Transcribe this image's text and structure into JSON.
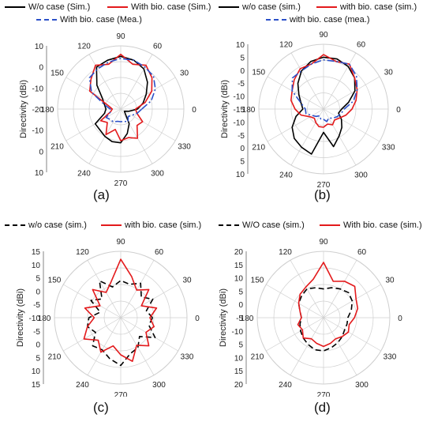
{
  "panels": [
    {
      "id": "a",
      "label": "(a)",
      "ylabel": "Directivity (dBi)",
      "legend": [
        "W/o case (Sim.)",
        "With bio. case (Sim.)",
        "With bio. case (Mea.)"
      ],
      "radial_ticks": [
        "10",
        "0",
        "-10",
        "-20",
        "-10",
        "0",
        "10"
      ],
      "angle_labels": [
        "0",
        "30",
        "60",
        "90",
        "120",
        "150",
        "180",
        "210",
        "240",
        "270",
        "300",
        "330"
      ]
    },
    {
      "id": "b",
      "label": "(b)",
      "ylabel": "Directivity (dBi)",
      "legend": [
        "w/o case (sim.)",
        "with bio. case (sim.)",
        "with bio. case (mea.)"
      ],
      "radial_ticks": [
        "10",
        "5",
        "0",
        "-5",
        "-10",
        "-15",
        "-10",
        "-5",
        "0",
        "5",
        "10"
      ],
      "angle_labels": [
        "0",
        "30",
        "60",
        "90",
        "120",
        "150",
        "180",
        "210",
        "240",
        "270",
        "300",
        "330"
      ]
    },
    {
      "id": "c",
      "label": "(c)",
      "ylabel": "Directivity (dBi)",
      "legend": [
        "w/o case (sim.)",
        "with bio. case (sim.)"
      ],
      "radial_ticks": [
        "15",
        "10",
        "5",
        "0",
        "-5",
        "-10",
        "-5",
        "0",
        "5",
        "10",
        "15"
      ],
      "angle_labels": [
        "0",
        "30",
        "60",
        "90",
        "120",
        "150",
        "180",
        "210",
        "240",
        "270",
        "300",
        "330"
      ]
    },
    {
      "id": "d",
      "label": "(d)",
      "ylabel": "Directivity (dBi)",
      "legend": [
        "W/O case (sim.)",
        "With bio. case (sim.)"
      ],
      "radial_ticks": [
        "20",
        "15",
        "10",
        "5",
        "0",
        "-5",
        "-10",
        "5",
        "10",
        "15",
        "20"
      ],
      "angle_labels": [
        "0",
        "30",
        "60",
        "90",
        "120",
        "150",
        "180",
        "210",
        "240",
        "270",
        "300",
        "330"
      ]
    }
  ],
  "colors": {
    "sim_wo": "#000000",
    "sim_bio": "#e31a1c",
    "mea_bio": "#2b50c8",
    "grid": "#cfcfcf"
  },
  "chart_data": [
    {
      "type": "polar",
      "title": "",
      "ylabel": "Directivity (dBi)",
      "r_range": [
        -20,
        10
      ],
      "theta_unit": "deg",
      "series": [
        {
          "name": "W/o case (Sim.)",
          "style": "solid",
          "color": "#000000",
          "theta": [
            0,
            15,
            30,
            45,
            60,
            75,
            90,
            105,
            120,
            135,
            150,
            165,
            180,
            195,
            210,
            225,
            240,
            255,
            270,
            285,
            300,
            315,
            330,
            345
          ],
          "r": [
            -12,
            -9,
            -6,
            -2,
            2,
            4,
            5,
            4,
            3,
            -4,
            -10,
            -12,
            -13,
            -12,
            -6,
            -6,
            -5,
            -4,
            -4,
            -8,
            -12,
            -17,
            -18,
            -16
          ]
        },
        {
          "name": "With bio. case (Sim.)",
          "style": "solid",
          "color": "#e31a1c",
          "theta": [
            0,
            15,
            30,
            45,
            60,
            75,
            90,
            105,
            120,
            135,
            150,
            165,
            180,
            195,
            210,
            225,
            240,
            255,
            270,
            285,
            300,
            315,
            330,
            345
          ],
          "r": [
            -13,
            -8,
            -3,
            1,
            4,
            2,
            6,
            2,
            4,
            0,
            -3,
            -14,
            -16,
            -15,
            -9,
            -11,
            -6,
            -10,
            -5,
            -6,
            -4,
            -9,
            -8,
            -12
          ]
        },
        {
          "name": "With bio. case (Mea.)",
          "style": "dashdot",
          "color": "#2b50c8",
          "theta": [
            0,
            15,
            30,
            45,
            60,
            75,
            90,
            105,
            120,
            135,
            150,
            165,
            180,
            195,
            210,
            225,
            240,
            255,
            270,
            285,
            300,
            315,
            330,
            345
          ],
          "r": [
            -10,
            -5,
            -1,
            2,
            3,
            4,
            4,
            3,
            2,
            1,
            -4,
            -12,
            -15,
            -15,
            -12,
            -13,
            -13,
            -14,
            -14,
            -14,
            -13,
            -15,
            -14,
            -12
          ]
        }
      ]
    },
    {
      "type": "polar",
      "title": "",
      "ylabel": "Directivity (dBi)",
      "r_range": [
        -15,
        10
      ],
      "theta_unit": "deg",
      "series": [
        {
          "name": "w/o case (sim.)",
          "style": "solid",
          "color": "#000000",
          "theta": [
            0,
            15,
            30,
            45,
            60,
            75,
            90,
            105,
            120,
            135,
            150,
            165,
            180,
            195,
            210,
            225,
            240,
            255,
            270,
            285,
            300,
            315,
            330,
            345
          ],
          "r": [
            -8,
            -5,
            -1,
            2,
            4,
            5,
            5,
            4,
            2,
            -1,
            -4,
            -6,
            -7,
            -4,
            -1,
            1,
            2,
            3,
            -6,
            0,
            -3,
            -5,
            -7,
            -9
          ]
        },
        {
          "name": "with bio. case (sim.)",
          "style": "solid",
          "color": "#e31a1c",
          "theta": [
            0,
            15,
            30,
            45,
            60,
            75,
            90,
            105,
            120,
            135,
            150,
            165,
            180,
            195,
            210,
            225,
            240,
            255,
            270,
            285,
            300,
            315,
            330,
            345
          ],
          "r": [
            -4,
            -2,
            0,
            2,
            5,
            4,
            6,
            3,
            3,
            1,
            -1,
            -2,
            -4,
            -6,
            -9,
            -10,
            -9,
            -8,
            -8,
            -9,
            -8,
            -9,
            -8,
            -6
          ]
        },
        {
          "name": "with bio. case (mea.)",
          "style": "dashdot",
          "color": "#2b50c8",
          "theta": [
            0,
            15,
            30,
            45,
            60,
            75,
            90,
            105,
            120,
            135,
            150,
            165,
            180,
            195,
            210,
            225,
            240,
            255,
            270,
            285,
            300,
            315,
            330,
            345
          ],
          "r": [
            -7,
            -3,
            0,
            3,
            5,
            4,
            4,
            3,
            2,
            2,
            -1,
            -6,
            -8,
            -8,
            -10,
            -11,
            -12,
            -11,
            -11,
            -10,
            -11,
            -10,
            -9,
            -8
          ]
        }
      ]
    },
    {
      "type": "polar",
      "title": "",
      "ylabel": "Directivity (dBi)",
      "r_range": [
        -10,
        15
      ],
      "theta_unit": "deg",
      "series": [
        {
          "name": "w/o case (sim.)",
          "style": "dashed",
          "color": "#000000",
          "theta": [
            0,
            15,
            30,
            45,
            60,
            75,
            90,
            105,
            120,
            135,
            150,
            165,
            180,
            195,
            210,
            225,
            240,
            255,
            270,
            285,
            300,
            315,
            330,
            345
          ],
          "r": [
            2,
            0,
            4,
            1,
            5,
            3,
            4,
            2,
            6,
            0,
            3,
            -2,
            2,
            3,
            1,
            5,
            4,
            6,
            8,
            4,
            3,
            0,
            5,
            1
          ]
        },
        {
          "name": "with bio. case (sim.)",
          "style": "solid",
          "color": "#e31a1c",
          "theta": [
            0,
            15,
            30,
            45,
            60,
            75,
            90,
            105,
            120,
            135,
            150,
            165,
            180,
            195,
            210,
            225,
            240,
            255,
            270,
            285,
            300,
            315,
            330,
            345
          ],
          "r": [
            1,
            4,
            -1,
            5,
            2,
            6,
            12,
            4,
            1,
            5,
            -1,
            4,
            0,
            3,
            6,
            2,
            5,
            1,
            4,
            7,
            2,
            5,
            1,
            3
          ]
        }
      ]
    },
    {
      "type": "polar",
      "title": "",
      "ylabel": "Directivity (dBi)",
      "r_range": [
        -10,
        20
      ],
      "theta_unit": "deg",
      "series": [
        {
          "name": "W/O case (sim.)",
          "style": "dashed",
          "color": "#000000",
          "theta": [
            0,
            15,
            30,
            45,
            60,
            75,
            90,
            105,
            120,
            135,
            150,
            165,
            180,
            195,
            210,
            225,
            240,
            255,
            270,
            285,
            300,
            315,
            330,
            345
          ],
          "r": [
            1,
            3,
            5,
            6,
            5,
            4,
            3,
            4,
            5,
            4,
            3,
            1,
            0,
            1,
            2,
            3,
            4,
            5,
            5,
            4,
            3,
            2,
            1,
            1
          ]
        },
        {
          "name": "With bio. case (sim.)",
          "style": "solid",
          "color": "#e31a1c",
          "theta": [
            0,
            15,
            30,
            45,
            60,
            75,
            90,
            105,
            120,
            135,
            150,
            165,
            180,
            195,
            210,
            225,
            240,
            255,
            270,
            285,
            300,
            315,
            330,
            345
          ],
          "r": [
            4,
            6,
            7,
            10,
            9,
            7,
            15,
            8,
            6,
            5,
            3,
            1,
            0,
            2,
            1,
            3,
            1,
            2,
            3,
            2,
            1,
            2,
            3,
            2
          ]
        }
      ]
    }
  ]
}
